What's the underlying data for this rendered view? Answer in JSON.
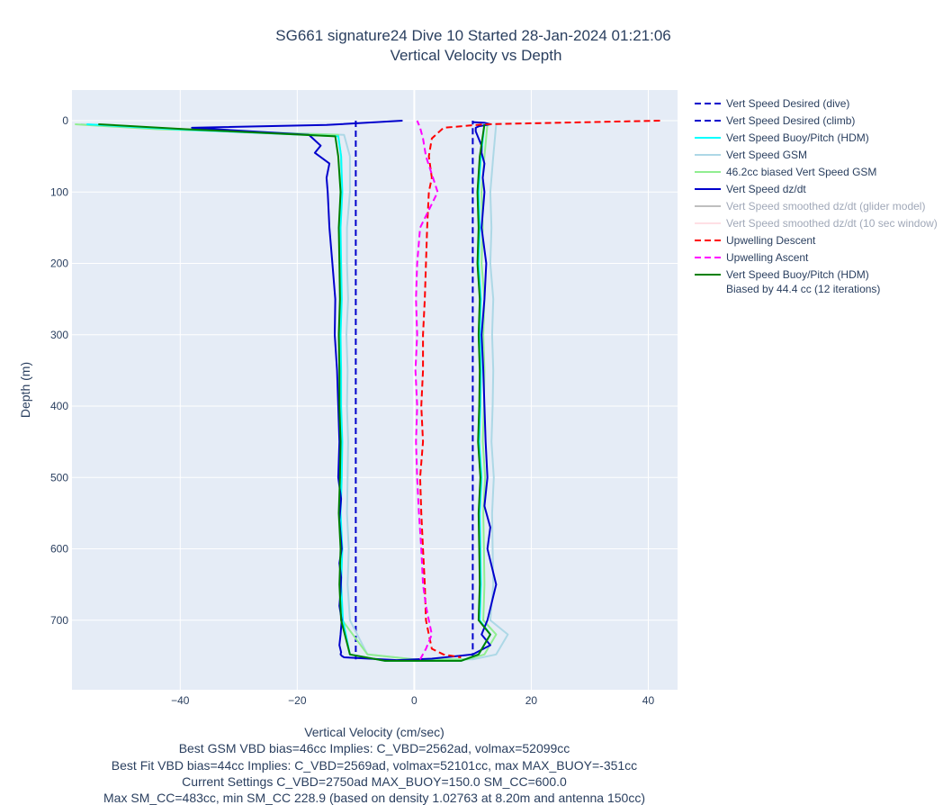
{
  "title": {
    "line1": "SG661 signature24 Dive 10 Started 28-Jan-2024 01:21:06",
    "line2": "Vertical Velocity vs Depth"
  },
  "xaxis_title": "Vertical Velocity (cm/sec)",
  "yaxis_title": "Depth (m)",
  "notes": [
    "Best GSM VBD bias=46cc Implies: C_VBD=2562ad, volmax=52099cc",
    "Best Fit VBD bias=44cc Implies: C_VBD=2569ad, volmax=52101cc, max MAX_BUOY=-351cc",
    "Current Settings C_VBD=2750ad MAX_BUOY=150.0 SM_CC=600.0",
    "Max SM_CC=483cc, min SM_CC 228.9 (based on density 1.02763 at 8.20m and antenna 150cc)"
  ],
  "legend": [
    {
      "label": "Vert Speed Desired (dive)",
      "color": "#0000cc",
      "dash": true,
      "dimmed": false
    },
    {
      "label": "Vert Speed Desired (climb)",
      "color": "#0000cc",
      "dash": true,
      "dimmed": false
    },
    {
      "label": "Vert Speed Buoy/Pitch (HDM)",
      "color": "#00ffff",
      "dash": false,
      "dimmed": false
    },
    {
      "label": "Vert Speed GSM",
      "color": "#add8e6",
      "dash": false,
      "dimmed": false
    },
    {
      "label": "46.2cc biased Vert Speed GSM",
      "color": "#90ee90",
      "dash": false,
      "dimmed": false
    },
    {
      "label": "Vert Speed dz/dt",
      "color": "#0000cc",
      "dash": false,
      "dimmed": false
    },
    {
      "label": "Vert Speed smoothed dz/dt (glider model)",
      "color": "#808080",
      "dash": false,
      "dimmed": true
    },
    {
      "label": "Vert Speed smoothed dz/dt (10 sec window)",
      "color": "#ffc0cb",
      "dash": false,
      "dimmed": true
    },
    {
      "label": "Upwelling Descent",
      "color": "#ff0000",
      "dash": true,
      "dimmed": false
    },
    {
      "label": "Upwelling Ascent",
      "color": "#ff00ff",
      "dash": true,
      "dimmed": false
    },
    {
      "label": "Vert Speed Buoy/Pitch (HDM)",
      "label2": "Biased by 44.4 cc (12 iterations)",
      "color": "#008000",
      "dash": false,
      "dimmed": false
    }
  ],
  "chart_data": {
    "type": "line",
    "xlabel": "Vertical Velocity (cm/sec)",
    "ylabel": "Depth (m)",
    "xlim": [
      -58.5,
      45
    ],
    "ylim": [
      0,
      800
    ],
    "y_reversed": true,
    "x_ticks": [
      -40,
      -20,
      0,
      20,
      40
    ],
    "x_tick_labels": [
      "−40",
      "−20",
      "0",
      "20",
      "40"
    ],
    "y_ticks": [
      0,
      100,
      200,
      300,
      400,
      500,
      600,
      700
    ],
    "grid": true,
    "legend_position": "right",
    "series": [
      {
        "name": "Vert Speed Desired (dive)",
        "color": "#0000cc",
        "dash": true,
        "x": [
          -10,
          -10
        ],
        "depth": [
          0,
          755
        ]
      },
      {
        "name": "Vert Speed Desired (climb)",
        "color": "#0000cc",
        "dash": true,
        "x": [
          10,
          10
        ],
        "depth": [
          755,
          0
        ]
      },
      {
        "name": "Vert Speed GSM",
        "color": "#add8e6",
        "dash": false,
        "x": [
          -57,
          -40,
          -12,
          -11,
          -11,
          -11.5,
          -11.5,
          -11.3,
          -11.6,
          -11.4,
          -11.5,
          -11.3,
          -11.4,
          -11.5,
          -11.2,
          -11.4,
          -11,
          -8,
          0,
          10,
          14,
          16,
          13,
          13.5,
          13.4,
          13.3,
          13.6,
          13.2,
          13.4,
          13.5,
          13.3,
          13.5,
          13,
          13.2,
          13,
          13.5,
          14
        ],
        "depth": [
          5,
          12,
          20,
          50,
          100,
          150,
          200,
          250,
          300,
          350,
          400,
          450,
          500,
          550,
          600,
          650,
          700,
          748,
          755,
          755,
          748,
          720,
          700,
          650,
          600,
          550,
          500,
          450,
          400,
          350,
          300,
          250,
          200,
          150,
          100,
          50,
          5
        ]
      },
      {
        "name": "46.2cc biased Vert Speed GSM",
        "color": "#90ee90",
        "dash": false,
        "x": [
          -58,
          -44,
          -13,
          -12.5,
          -12.4,
          -12.7,
          -12.6,
          -12.5,
          -12.8,
          -12.6,
          -12.7,
          -12.5,
          -12.6,
          -12.8,
          -12.5,
          -12.6,
          -12.3,
          -8,
          0,
          9,
          12,
          14,
          11.8,
          12,
          11.9,
          11.8,
          12.1,
          11.7,
          11.9,
          12,
          11.8,
          12,
          11.5,
          11.7,
          11.5,
          12,
          12.5
        ],
        "depth": [
          5,
          12,
          20,
          50,
          100,
          150,
          200,
          250,
          300,
          350,
          400,
          450,
          500,
          550,
          600,
          650,
          700,
          748,
          755,
          755,
          748,
          720,
          700,
          650,
          600,
          550,
          500,
          450,
          400,
          350,
          300,
          250,
          200,
          150,
          100,
          50,
          5
        ]
      },
      {
        "name": "Vert Speed Buoy/Pitch (HDM)",
        "color": "#00ffff",
        "dash": false,
        "x": [
          -56,
          -41,
          -13,
          -12.5,
          -12.3,
          -12.6,
          -12.5,
          -12.4,
          -12.6,
          -12.5,
          -12.5,
          -12.3,
          -12.4,
          -12.6,
          -12.3,
          -12.5,
          -12.2,
          -11,
          -5,
          8,
          11,
          13,
          11.2,
          11.4,
          11.3,
          11.2,
          11.5,
          11.1,
          11.3,
          11.4,
          11.2,
          11.4,
          11,
          11.2,
          11,
          11.4,
          12
        ],
        "depth": [
          5,
          12,
          22,
          50,
          100,
          150,
          200,
          250,
          300,
          350,
          400,
          450,
          500,
          550,
          600,
          650,
          700,
          748,
          757,
          757,
          748,
          720,
          700,
          650,
          600,
          550,
          500,
          450,
          400,
          350,
          300,
          250,
          200,
          150,
          100,
          50,
          5
        ]
      },
      {
        "name": "Vert Speed dz/dt",
        "color": "#0000cc",
        "dash": false,
        "x": [
          -2,
          -15,
          -38,
          -18,
          -16,
          -17,
          -14.5,
          -15,
          -14.8,
          -14.5,
          -14,
          -13.5,
          -13.6,
          -13.2,
          -13,
          -12.8,
          -13,
          -12.5,
          -12.8,
          -12.6,
          -12.4,
          -12.8,
          -12.5,
          -12.6,
          -12.8,
          -12.4,
          -12.6,
          -12.8,
          -12.5,
          -12.6,
          -12.4,
          -12,
          -3,
          3,
          10,
          13,
          11.5,
          12.5,
          14,
          12.5,
          13,
          12,
          12.5,
          12.2,
          12,
          11.8,
          11.5,
          12,
          12.3,
          11.5,
          12,
          11.7,
          12,
          11.5,
          11.5,
          11,
          10.5,
          10.5,
          11,
          13,
          12,
          10
        ],
        "depth": [
          0,
          6,
          10,
          20,
          35,
          45,
          60,
          80,
          100,
          150,
          200,
          250,
          300,
          350,
          400,
          450,
          500,
          530,
          560,
          580,
          600,
          620,
          640,
          660,
          680,
          700,
          720,
          735,
          745,
          748,
          750,
          752,
          756,
          754,
          748,
          735,
          720,
          700,
          650,
          600,
          570,
          540,
          500,
          450,
          400,
          350,
          300,
          250,
          200,
          150,
          100,
          80,
          60,
          45,
          35,
          25,
          15,
          10,
          8,
          5,
          3,
          2
        ]
      },
      {
        "name": "Upwelling Descent",
        "color": "#ff0000",
        "dash": true,
        "x": [
          42,
          30,
          12,
          5,
          3,
          2.5,
          3,
          2.5,
          2.2,
          2,
          1.8,
          1.5,
          1.5,
          1.2,
          1.5,
          1,
          1.2,
          1.5,
          1.8,
          2,
          2.5,
          3,
          5,
          8
        ],
        "depth": [
          0,
          2,
          5,
          10,
          25,
          50,
          80,
          100,
          150,
          200,
          250,
          300,
          350,
          400,
          450,
          500,
          550,
          600,
          650,
          700,
          720,
          740,
          748,
          752
        ]
      },
      {
        "name": "Upwelling Ascent",
        "color": "#ff00ff",
        "dash": true,
        "x": [
          1,
          2,
          3,
          2.5,
          2,
          1.5,
          1.2,
          0.8,
          0.5,
          0.3,
          0.5,
          0.2,
          0.5,
          0.3,
          0.5,
          1,
          4,
          2,
          1.5,
          1,
          0.5
        ],
        "depth": [
          755,
          740,
          720,
          700,
          680,
          650,
          600,
          550,
          500,
          450,
          400,
          350,
          300,
          250,
          200,
          150,
          100,
          50,
          25,
          10,
          0
        ]
      },
      {
        "name": "Vert Speed Buoy/Pitch (HDM) Biased by 44.4 cc (12 iterations)",
        "color": "#008000",
        "dash": false,
        "x": [
          -54,
          -39,
          -13.5,
          -13,
          -12.6,
          -12.9,
          -12.8,
          -12.7,
          -12.9,
          -12.8,
          -12.8,
          -12.6,
          -12.7,
          -12.9,
          -12.6,
          -12.8,
          -12.5,
          -11,
          -5,
          8,
          11,
          13,
          11,
          11.2,
          11.1,
          11,
          11.3,
          10.9,
          11.1,
          11.2,
          11,
          11.2,
          10.8,
          11,
          10.8,
          11.2,
          12
        ],
        "depth": [
          5,
          12,
          22,
          50,
          100,
          150,
          200,
          250,
          300,
          350,
          400,
          450,
          500,
          550,
          600,
          650,
          700,
          748,
          757,
          757,
          748,
          720,
          700,
          650,
          600,
          550,
          500,
          450,
          400,
          350,
          300,
          250,
          200,
          150,
          100,
          50,
          5
        ]
      }
    ]
  }
}
